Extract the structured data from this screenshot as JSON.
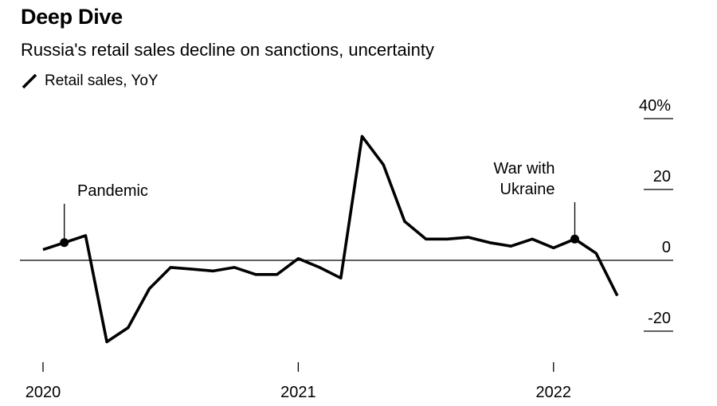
{
  "header": {
    "title": "Deep Dive",
    "subtitle": "Russia's retail sales decline on sanctions, uncertainty"
  },
  "chart_data": {
    "type": "line",
    "title": "Deep Dive",
    "subtitle": "Russia's retail sales decline on sanctions, uncertainty",
    "xlabel": "",
    "ylabel": "",
    "ylim": [
      -20,
      40
    ],
    "y_ticks": [
      {
        "value": 40,
        "label": "40%"
      },
      {
        "value": 20,
        "label": "20"
      },
      {
        "value": 0,
        "label": "0"
      },
      {
        "value": -20,
        "label": "-20"
      }
    ],
    "x_ticks": [
      {
        "value": "2020-01",
        "label": "2020"
      },
      {
        "value": "2021-01",
        "label": "2021"
      },
      {
        "value": "2022-01",
        "label": "2022"
      }
    ],
    "zero_line": true,
    "legend_position": "top-left",
    "colors": {
      "line": "#000000",
      "zero_line": "#000000"
    },
    "series": [
      {
        "name": "Retail sales, YoY",
        "points": [
          {
            "x": "2020-01",
            "y": 3
          },
          {
            "x": "2020-02",
            "y": 5
          },
          {
            "x": "2020-03",
            "y": 7
          },
          {
            "x": "2020-04",
            "y": -23
          },
          {
            "x": "2020-05",
            "y": -19
          },
          {
            "x": "2020-06",
            "y": -8
          },
          {
            "x": "2020-07",
            "y": -2
          },
          {
            "x": "2020-08",
            "y": -2.5
          },
          {
            "x": "2020-09",
            "y": -3
          },
          {
            "x": "2020-10",
            "y": -2
          },
          {
            "x": "2020-11",
            "y": -4
          },
          {
            "x": "2020-12",
            "y": -4
          },
          {
            "x": "2021-01",
            "y": 0.5
          },
          {
            "x": "2021-02",
            "y": -2
          },
          {
            "x": "2021-03",
            "y": -5
          },
          {
            "x": "2021-04",
            "y": 35
          },
          {
            "x": "2021-05",
            "y": 27
          },
          {
            "x": "2021-06",
            "y": 11
          },
          {
            "x": "2021-07",
            "y": 6
          },
          {
            "x": "2021-08",
            "y": 6
          },
          {
            "x": "2021-09",
            "y": 6.5
          },
          {
            "x": "2021-10",
            "y": 5
          },
          {
            "x": "2021-11",
            "y": 4
          },
          {
            "x": "2021-12",
            "y": 6
          },
          {
            "x": "2022-01",
            "y": 3.5
          },
          {
            "x": "2022-02",
            "y": 6
          },
          {
            "x": "2022-03",
            "y": 2
          },
          {
            "x": "2022-04",
            "y": -10
          }
        ]
      }
    ],
    "annotations": [
      {
        "label_lines": [
          "Pandemic"
        ],
        "x": "2020-02",
        "y": 5
      },
      {
        "label_lines": [
          "War with",
          "Ukraine"
        ],
        "x": "2022-02",
        "y": 6
      }
    ]
  }
}
